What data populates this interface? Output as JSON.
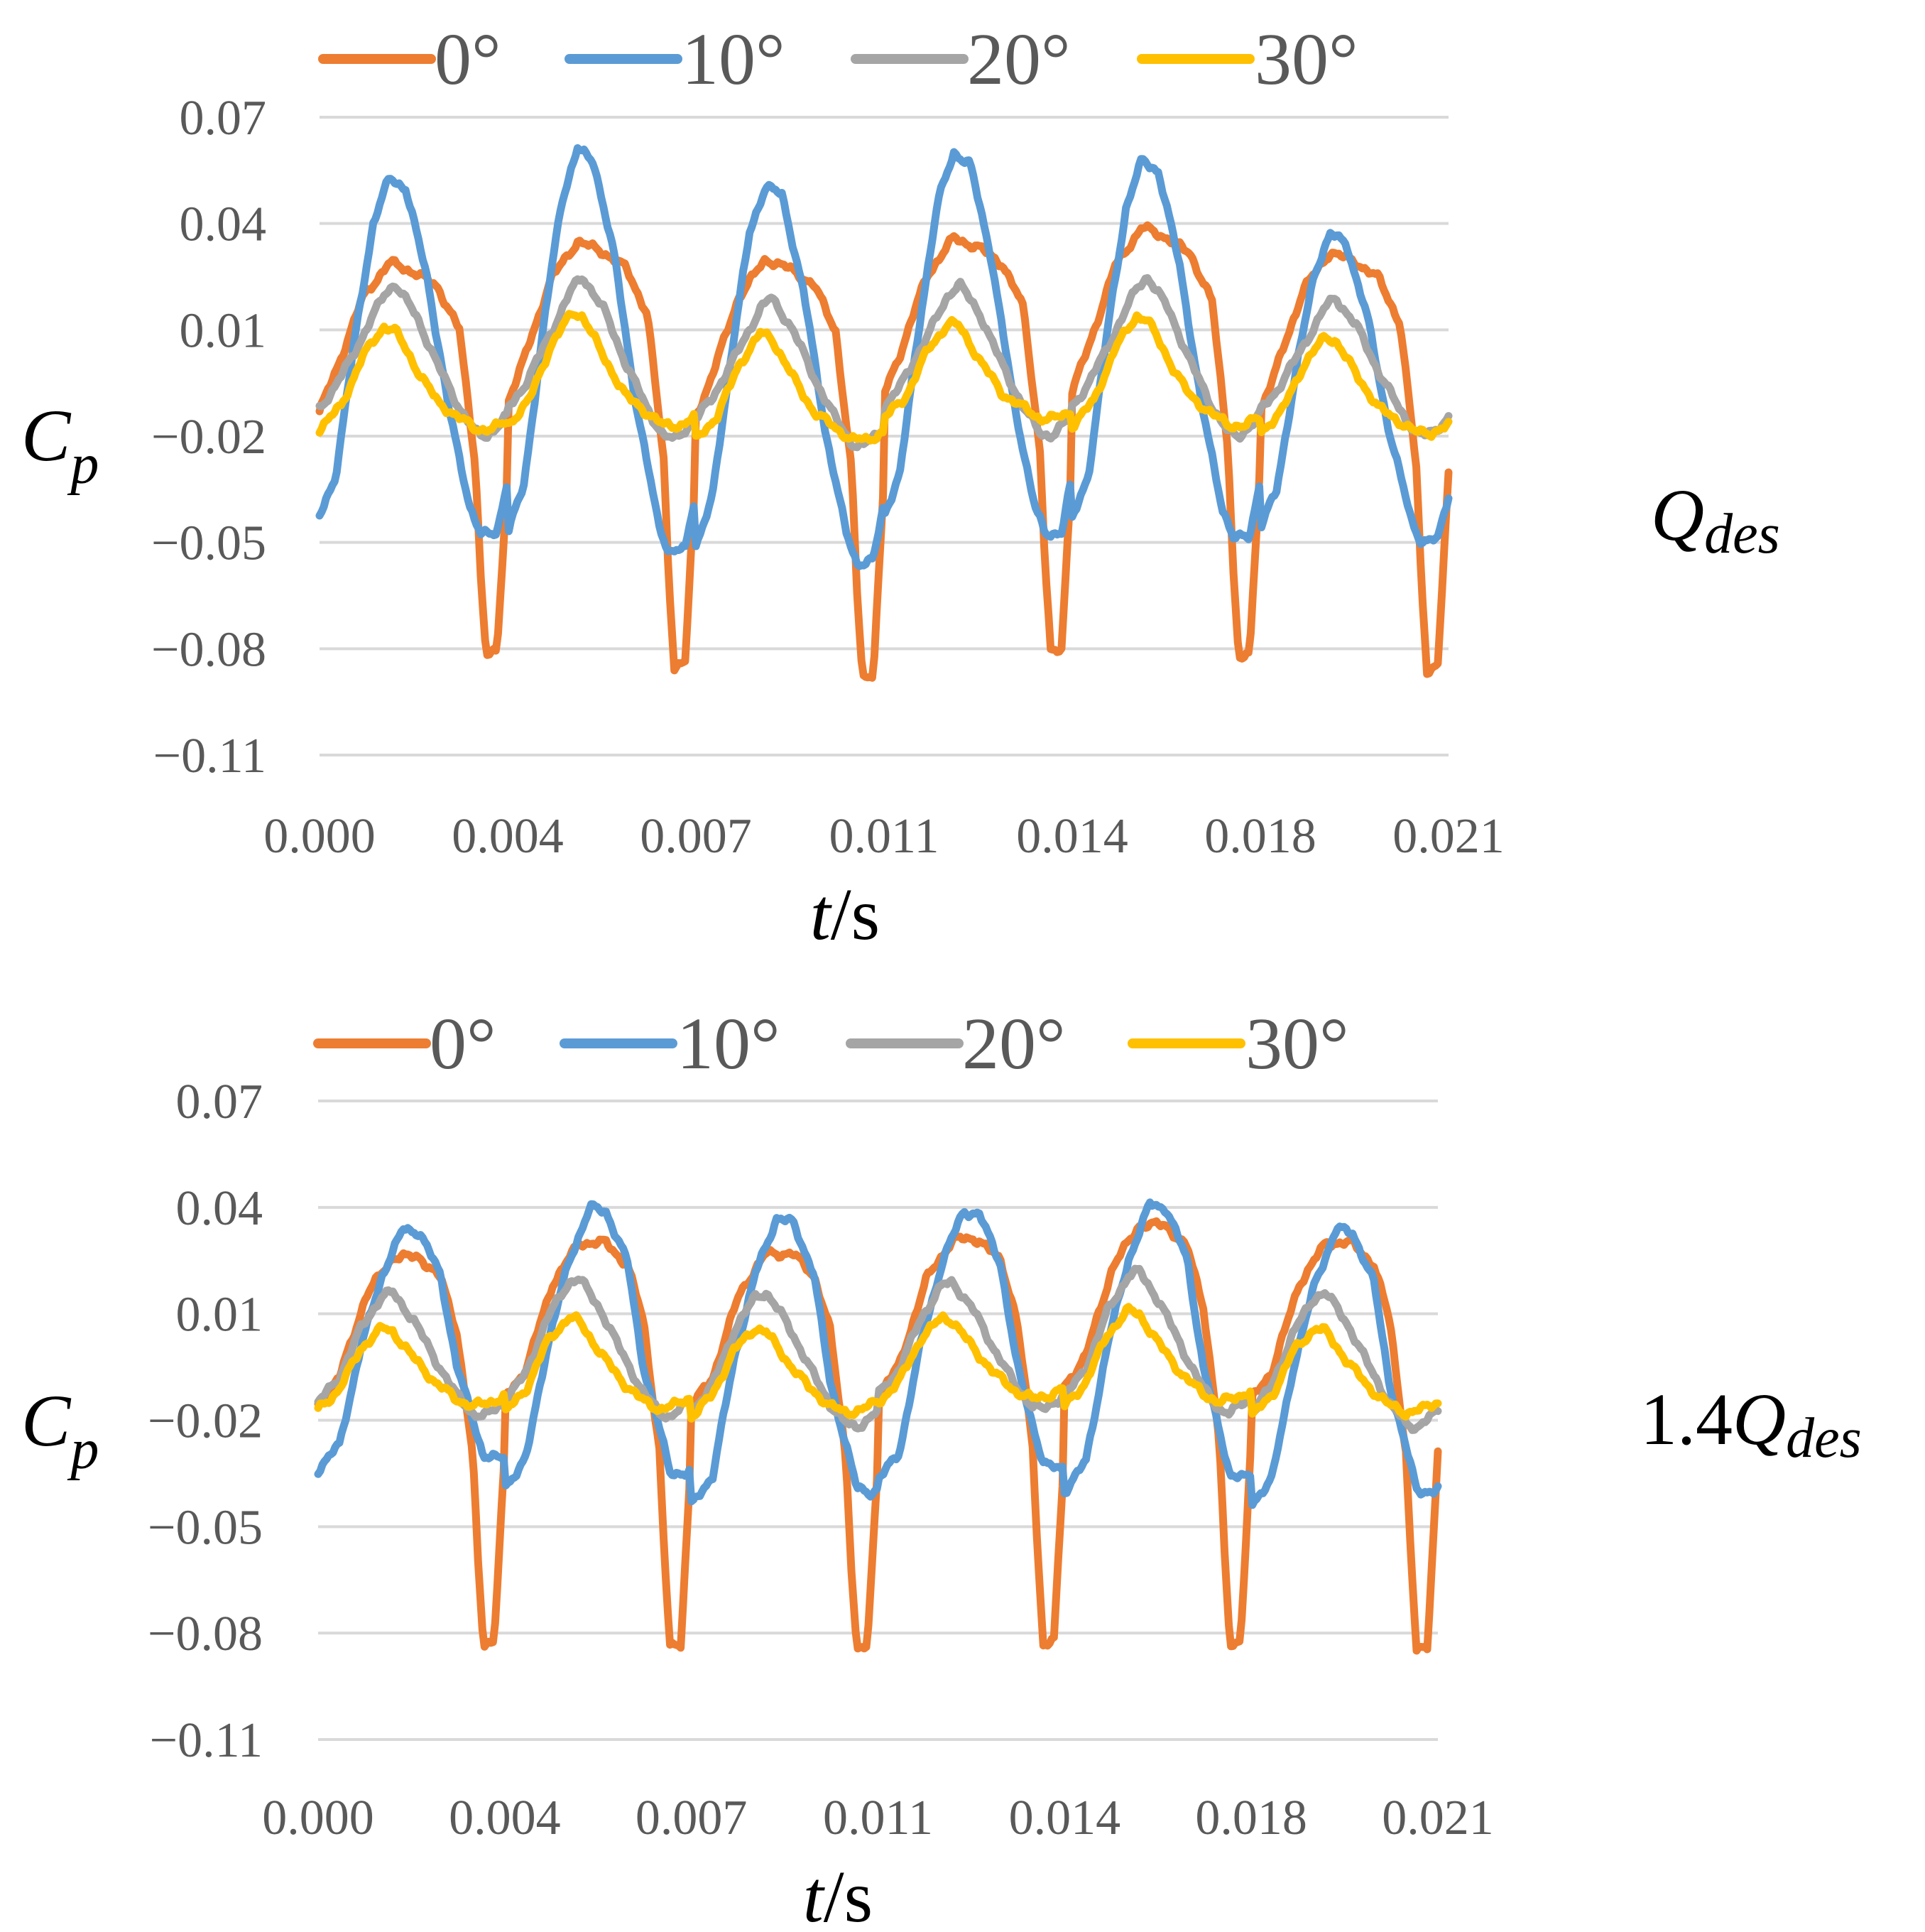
{
  "chart_data": [
    {
      "type": "line",
      "title": "",
      "condition_label": {
        "main": "Q",
        "sub": "des"
      },
      "xlabel": {
        "italic": "t",
        "rest": "/s"
      },
      "ylabel": {
        "main": "C",
        "sub": "p"
      },
      "ylim": [
        -0.11,
        0.07
      ],
      "xlim": [
        0.0,
        0.021
      ],
      "yticks": [
        0.07,
        0.04,
        0.01,
        -0.02,
        -0.05,
        -0.08,
        -0.11
      ],
      "ytick_labels": [
        "0.07",
        "0.04",
        "0.01",
        "−0.02",
        "−0.05",
        "−0.08",
        "−0.11"
      ],
      "xtick_labels": [
        "0.000",
        "0.004",
        "0.007",
        "0.011",
        "0.014",
        "0.018",
        "0.021"
      ],
      "grid": true,
      "legend_position": "top",
      "period": 0.0035,
      "series": [
        {
          "name": "0°",
          "color": "#ED7D31",
          "key": [
            [
              0.0,
              -0.013
            ],
            [
              0.0003,
              -0.002
            ],
            [
              0.0008,
              0.019
            ],
            [
              0.0013,
              0.029
            ],
            [
              0.0018,
              0.026
            ],
            [
              0.0022,
              0.022
            ],
            [
              0.0026,
              0.01
            ],
            [
              0.0029,
              -0.028
            ],
            [
              0.003,
              -0.06
            ],
            [
              0.0031,
              -0.082
            ],
            [
              0.0033,
              -0.081
            ],
            [
              0.0035,
              -0.03
            ],
            [
              0.0038,
              -0.015
            ]
          ],
          "peaks": [
            0.029,
            0.035,
            0.03,
            0.036,
            0.039,
            0.032
          ],
          "troughs": [
            -0.082,
            -0.085,
            -0.088,
            -0.081,
            -0.083,
            -0.086
          ]
        },
        {
          "name": "10°",
          "color": "#5B9BD5",
          "key": [
            [
              0.0,
              -0.043
            ],
            [
              0.0003,
              -0.031
            ],
            [
              0.0007,
              0.012
            ],
            [
              0.001,
              0.04
            ],
            [
              0.0013,
              0.053
            ],
            [
              0.0016,
              0.05
            ],
            [
              0.002,
              0.025
            ],
            [
              0.0024,
              -0.012
            ],
            [
              0.0028,
              -0.04
            ],
            [
              0.003,
              -0.048
            ],
            [
              0.0033,
              -0.047
            ],
            [
              0.0036,
              -0.025
            ]
          ],
          "peaks": [
            0.053,
            0.061,
            0.051,
            0.06,
            0.058,
            0.037
          ],
          "troughs": [
            -0.048,
            -0.053,
            -0.056,
            -0.048,
            -0.049,
            -0.05
          ]
        },
        {
          "name": "20°",
          "color": "#A5A5A5",
          "key": [
            [
              0.0,
              -0.012
            ],
            [
              0.0003,
              -0.006
            ],
            [
              0.0008,
              0.008
            ],
            [
              0.0012,
              0.02
            ],
            [
              0.0014,
              0.023
            ],
            [
              0.0018,
              0.014
            ],
            [
              0.0022,
              0.0
            ],
            [
              0.0026,
              -0.012
            ],
            [
              0.0029,
              -0.019
            ],
            [
              0.0031,
              -0.02
            ],
            [
              0.0034,
              -0.016
            ],
            [
              0.0037,
              -0.01
            ]
          ],
          "peaks": [
            0.023,
            0.025,
            0.019,
            0.023,
            0.025,
            0.019
          ],
          "troughs": [
            -0.02,
            -0.021,
            -0.023,
            -0.02,
            -0.02,
            -0.02
          ]
        },
        {
          "name": "30°",
          "color": "#FFC000",
          "key": [
            [
              0.0,
              -0.016
            ],
            [
              0.0004,
              -0.01
            ],
            [
              0.0008,
              0.003
            ],
            [
              0.0012,
              0.011
            ],
            [
              0.0014,
              0.01
            ],
            [
              0.0018,
              0.0
            ],
            [
              0.0022,
              -0.009
            ],
            [
              0.0026,
              -0.013
            ],
            [
              0.0029,
              -0.016
            ],
            [
              0.0032,
              -0.016
            ],
            [
              0.0035,
              -0.014
            ],
            [
              0.0038,
              -0.011
            ]
          ],
          "peaks": [
            0.011,
            0.015,
            0.009,
            0.012,
            0.014,
            0.008
          ],
          "troughs": [
            -0.018,
            -0.017,
            -0.021,
            -0.015,
            -0.017,
            -0.019
          ]
        }
      ]
    },
    {
      "type": "line",
      "title": "",
      "condition_label": {
        "prefix": "1.4",
        "main": "Q",
        "sub": "des"
      },
      "xlabel": {
        "italic": "t",
        "rest": "/s"
      },
      "ylabel": {
        "main": "C",
        "sub": "p"
      },
      "ylim": [
        -0.11,
        0.07
      ],
      "xlim": [
        0.0,
        0.021
      ],
      "yticks": [
        0.07,
        0.04,
        0.01,
        -0.02,
        -0.05,
        -0.08,
        -0.11
      ],
      "ytick_labels": [
        "0.07",
        "0.04",
        "0.01",
        "−0.02",
        "−0.05",
        "−0.08",
        "−0.11"
      ],
      "xtick_labels": [
        "0.000",
        "0.004",
        "0.007",
        "0.011",
        "0.014",
        "0.018",
        "0.021"
      ],
      "grid": true,
      "legend_position": "top",
      "period": 0.0035,
      "series": [
        {
          "name": "0°",
          "color": "#ED7D31",
          "key": [
            [
              0.0,
              -0.016
            ],
            [
              0.0004,
              -0.008
            ],
            [
              0.0009,
              0.015
            ],
            [
              0.0014,
              0.026
            ],
            [
              0.0019,
              0.026
            ],
            [
              0.0023,
              0.02
            ],
            [
              0.0026,
              0.005
            ],
            [
              0.0029,
              -0.03
            ],
            [
              0.003,
              -0.06
            ],
            [
              0.0031,
              -0.083
            ],
            [
              0.0033,
              -0.082
            ],
            [
              0.0035,
              -0.03
            ],
            [
              0.0038,
              -0.015
            ]
          ],
          "peaks": [
            0.026,
            0.03,
            0.027,
            0.031,
            0.035,
            0.03
          ],
          "troughs": [
            -0.083,
            -0.084,
            -0.085,
            -0.083,
            -0.083,
            -0.085
          ]
        },
        {
          "name": "10°",
          "color": "#5B9BD5",
          "key": [
            [
              0.0,
              -0.034
            ],
            [
              0.0004,
              -0.027
            ],
            [
              0.0008,
              0.0
            ],
            [
              0.0012,
              0.02
            ],
            [
              0.0016,
              0.033
            ],
            [
              0.0019,
              0.032
            ],
            [
              0.0023,
              0.02
            ],
            [
              0.0026,
              -0.005
            ],
            [
              0.0029,
              -0.02
            ],
            [
              0.0031,
              -0.03
            ],
            [
              0.0034,
              -0.031
            ],
            [
              0.0037,
              -0.028
            ]
          ],
          "peaks": [
            0.034,
            0.04,
            0.037,
            0.039,
            0.041,
            0.034
          ],
          "troughs": [
            -0.034,
            -0.039,
            -0.044,
            -0.037,
            -0.04,
            -0.044
          ]
        },
        {
          "name": "20°",
          "color": "#A5A5A5",
          "key": [
            [
              0.0,
              -0.015
            ],
            [
              0.0004,
              -0.008
            ],
            [
              0.0008,
              0.006
            ],
            [
              0.0012,
              0.015
            ],
            [
              0.0014,
              0.016
            ],
            [
              0.0018,
              0.008
            ],
            [
              0.0022,
              -0.003
            ],
            [
              0.0026,
              -0.013
            ],
            [
              0.0029,
              -0.018
            ],
            [
              0.0031,
              -0.019
            ],
            [
              0.0034,
              -0.016
            ],
            [
              0.0037,
              -0.012
            ]
          ],
          "peaks": [
            0.016,
            0.02,
            0.016,
            0.019,
            0.022,
            0.016
          ],
          "troughs": [
            -0.019,
            -0.019,
            -0.022,
            -0.017,
            -0.018,
            -0.022
          ]
        },
        {
          "name": "30°",
          "color": "#FFC000",
          "key": [
            [
              0.0,
              -0.018
            ],
            [
              0.0004,
              -0.012
            ],
            [
              0.0008,
              0.0
            ],
            [
              0.0012,
              0.006
            ],
            [
              0.0014,
              0.005
            ],
            [
              0.0018,
              -0.003
            ],
            [
              0.0022,
              -0.01
            ],
            [
              0.0026,
              -0.015
            ],
            [
              0.0029,
              -0.017
            ],
            [
              0.0032,
              -0.016
            ],
            [
              0.0035,
              -0.014
            ],
            [
              0.0038,
              -0.012
            ]
          ],
          "peaks": [
            0.006,
            0.009,
            0.006,
            0.009,
            0.011,
            0.006
          ],
          "troughs": [
            -0.017,
            -0.018,
            -0.019,
            -0.015,
            -0.016,
            -0.019
          ]
        }
      ]
    }
  ]
}
